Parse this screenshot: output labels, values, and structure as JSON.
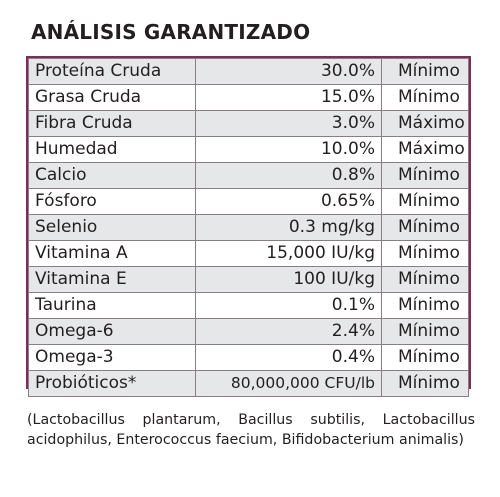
{
  "title": "ANÁLISIS GARANTIZADO",
  "rows": [
    {
      "name": "Proteína Cruda",
      "value": "30.0%",
      "limit": "Mínimo"
    },
    {
      "name": "Grasa Cruda",
      "value": "15.0%",
      "limit": "Mínimo"
    },
    {
      "name": "Fibra Cruda",
      "value": "3.0%",
      "limit": "Máximo"
    },
    {
      "name": "Humedad",
      "value": "10.0%",
      "limit": "Máximo"
    },
    {
      "name": "Calcio",
      "value": "0.8%",
      "limit": "Mínimo"
    },
    {
      "name": "Fósforo",
      "value": "0.65%",
      "limit": "Mínimo"
    },
    {
      "name": "Selenio",
      "value": "0.3 mg/kg",
      "limit": "Mínimo"
    },
    {
      "name": "Vitamina A",
      "value": "15,000 IU/kg",
      "limit": "Mínimo"
    },
    {
      "name": "Vitamina E",
      "value": "100 IU/kg",
      "limit": "Mínimo"
    },
    {
      "name": "Taurina",
      "value": "0.1%",
      "limit": "Mínimo"
    },
    {
      "name": "Omega-6",
      "value": "2.4%",
      "limit": "Mínimo"
    },
    {
      "name": "Omega-3",
      "value": "0.4%",
      "limit": "Mínimo"
    },
    {
      "name": "Probióticos*",
      "value": "80,000,000 CFU/lb",
      "limit": "Mínimo"
    }
  ],
  "footnote": "(Lactobacillus plantarum, Bacillus subtilis, Lactobacillus acidophilus, Enterococcus faecium, Bifidobacterium animalis)"
}
